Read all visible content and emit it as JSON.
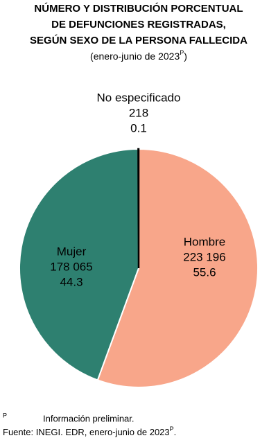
{
  "chart_data": {
    "type": "pie",
    "title_lines": [
      "NÚMERO Y DISTRIBUCIÓN PORCENTUAL",
      "DE DEFUNCIONES REGISTRADAS,",
      "SEGÚN SEXO DE LA PERSONA FALLECIDA"
    ],
    "subtitle": {
      "text": "(enero-junio de 2023",
      "sup": "P",
      "end": ")"
    },
    "categories": [
      "Hombre",
      "Mujer",
      "No especificado"
    ],
    "values": [
      223196,
      178065,
      218
    ],
    "value_labels": [
      "223 196",
      "178 065",
      "218"
    ],
    "percents": [
      55.6,
      44.3,
      0.1
    ],
    "colors": [
      "#f8a68a",
      "#2e8070",
      "#000000"
    ],
    "footnote": {
      "mark": "P",
      "text": "Información preliminar."
    },
    "source": {
      "text": "Fuente: INEGI. EDR, enero-junio de 2023",
      "sup": "P",
      "end": "."
    }
  }
}
